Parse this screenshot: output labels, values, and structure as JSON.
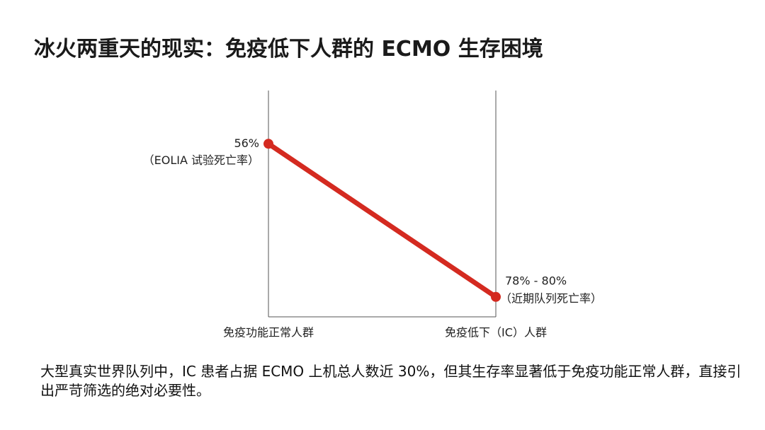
{
  "title": "冰火两重天的现实：免疫低下人群的 ECMO 生存困境",
  "chart_data": {
    "type": "line",
    "categories": [
      "免疫功能正常人群",
      "免疫低下（IC）人群"
    ],
    "values": [
      56,
      79
    ],
    "value_labels": [
      "56%",
      "78% - 80%"
    ],
    "annotations": [
      "（EOLIA 试验死亡率）",
      "（近期队列死亡率）"
    ],
    "color": "#d42a20",
    "ylim": [
      82,
      48
    ]
  },
  "footnote": "大型真实世界队列中，IC 患者占据 ECMO 上机总人数近 30%，但其生存率显著低于免疫功能正常人群，直接引出严苛筛选的绝对必要性。"
}
